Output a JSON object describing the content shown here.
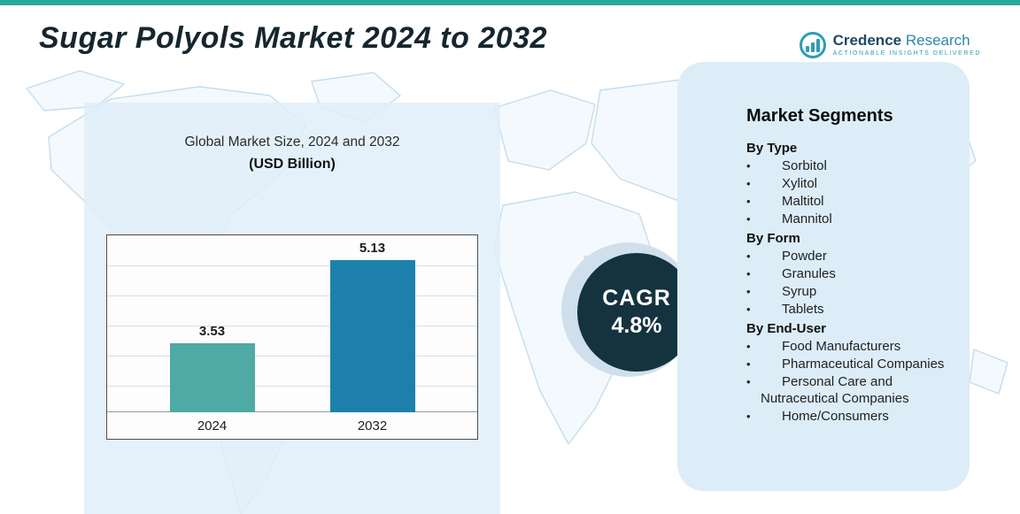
{
  "header": {
    "title": "Sugar Polyols Market 2024 to 2032"
  },
  "logo": {
    "name_primary": "Credence",
    "name_secondary": "Research",
    "tagline": "Actionable Insights Delivered"
  },
  "chart_data": {
    "type": "bar",
    "title": "Global Market Size, 2024 and 2032",
    "subtitle": "(USD Billion)",
    "categories": [
      "2024",
      "2032"
    ],
    "values": [
      3.53,
      5.13
    ],
    "bar_colors": [
      "#4faaa5",
      "#1d80ab"
    ],
    "ylim": [
      2.2,
      5.6
    ],
    "grid": true,
    "legend": "none"
  },
  "cagr": {
    "label": "CAGR",
    "value": "4.8%"
  },
  "segments": {
    "title": "Market Segments",
    "groups": [
      {
        "heading": "By Type",
        "items": [
          "Sorbitol",
          "Xylitol",
          "Maltitol",
          "Mannitol"
        ]
      },
      {
        "heading": "By Form",
        "items": [
          "Powder",
          "Granules",
          "Syrup",
          "Tablets"
        ]
      },
      {
        "heading": "By End-User",
        "items": [
          "Food Manufacturers",
          "Pharmaceutical Companies",
          "Personal Care and Nutraceutical Companies",
          "Home/Consumers"
        ]
      }
    ]
  },
  "colors": {
    "accent_teal": "#2aa79e",
    "bar_2024": "#4faaa5",
    "bar_2032": "#1d80ab",
    "cagr_circle": "#14333f",
    "panel_light": "#dcedf8",
    "map_line": "#c3ddef"
  }
}
